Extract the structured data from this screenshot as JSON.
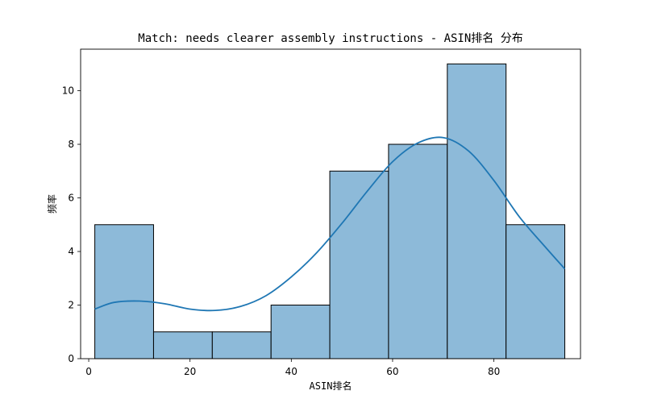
{
  "chart_data": {
    "type": "bar",
    "title": "Match: needs clearer assembly instructions - ASIN排名 分布",
    "xlabel": "ASIN排名",
    "ylabel": "频率",
    "xlim": [
      -1.6,
      97.1
    ],
    "ylim": [
      0,
      11.55
    ],
    "x_ticks": [
      0,
      20,
      40,
      60,
      80
    ],
    "y_ticks": [
      0,
      2,
      4,
      6,
      8,
      10
    ],
    "bins": [
      {
        "start": 1.2,
        "end": 12.8,
        "count": 5
      },
      {
        "start": 12.8,
        "end": 24.4,
        "count": 1
      },
      {
        "start": 24.4,
        "end": 36.0,
        "count": 1
      },
      {
        "start": 36.0,
        "end": 47.6,
        "count": 2
      },
      {
        "start": 47.6,
        "end": 59.2,
        "count": 7
      },
      {
        "start": 59.2,
        "end": 70.8,
        "count": 8
      },
      {
        "start": 70.8,
        "end": 82.4,
        "count": 11
      },
      {
        "start": 82.4,
        "end": 94.0,
        "count": 5
      }
    ],
    "kde_curve": {
      "x": [
        1.2,
        5,
        10,
        15,
        20,
        25,
        30,
        35,
        40,
        45,
        50,
        55,
        60,
        65,
        70,
        75,
        80,
        85,
        90,
        94
      ],
      "y": [
        1.85,
        2.1,
        2.15,
        2.05,
        1.85,
        1.8,
        1.95,
        2.35,
        3.05,
        3.95,
        5.05,
        6.25,
        7.35,
        8.05,
        8.25,
        7.75,
        6.65,
        5.3,
        4.2,
        3.35
      ]
    },
    "colors": {
      "bar_fill": "#8dbad9",
      "bar_edge": "#000000",
      "kde_line": "#1f77b4"
    },
    "grid": false,
    "legend": "none"
  }
}
